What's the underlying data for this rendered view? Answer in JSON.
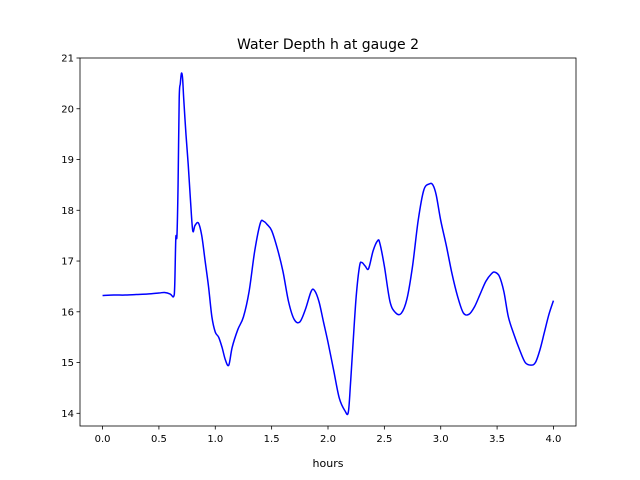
{
  "chart_data": {
    "type": "line",
    "title": "Water Depth h at gauge 2",
    "xlabel": "hours",
    "ylabel": "",
    "xlim": [
      -0.2,
      4.2
    ],
    "ylim": [
      13.75,
      21.0
    ],
    "grid": false,
    "x_ticks": [
      0.0,
      0.5,
      1.0,
      1.5,
      2.0,
      2.5,
      3.0,
      3.5,
      4.0
    ],
    "x_tick_labels": [
      "0.0",
      "0.5",
      "1.0",
      "1.5",
      "2.0",
      "2.5",
      "3.0",
      "3.5",
      "4.0"
    ],
    "y_ticks": [
      14,
      15,
      16,
      17,
      18,
      19,
      20,
      21
    ],
    "y_tick_labels": [
      "14",
      "15",
      "16",
      "17",
      "18",
      "19",
      "20",
      "21"
    ],
    "series": [
      {
        "color": "#0000ff",
        "x": [
          0.0,
          0.1,
          0.2,
          0.3,
          0.4,
          0.5,
          0.55,
          0.6,
          0.63,
          0.64,
          0.65,
          0.66,
          0.67,
          0.68,
          0.69,
          0.7,
          0.71,
          0.72,
          0.74,
          0.76,
          0.78,
          0.8,
          0.82,
          0.85,
          0.88,
          0.91,
          0.94,
          0.97,
          1.0,
          1.03,
          1.06,
          1.09,
          1.12,
          1.15,
          1.2,
          1.25,
          1.3,
          1.35,
          1.4,
          1.43,
          1.46,
          1.5,
          1.55,
          1.6,
          1.65,
          1.7,
          1.75,
          1.8,
          1.85,
          1.88,
          1.92,
          1.96,
          2.0,
          2.05,
          2.1,
          2.15,
          2.18,
          2.2,
          2.22,
          2.25,
          2.28,
          2.3,
          2.33,
          2.36,
          2.4,
          2.44,
          2.46,
          2.5,
          2.55,
          2.6,
          2.65,
          2.7,
          2.75,
          2.8,
          2.85,
          2.9,
          2.93,
          2.96,
          3.0,
          3.05,
          3.1,
          3.15,
          3.2,
          3.25,
          3.3,
          3.35,
          3.4,
          3.45,
          3.48,
          3.52,
          3.56,
          3.6,
          3.65,
          3.7,
          3.75,
          3.8,
          3.84,
          3.88,
          3.92,
          3.96,
          4.0
        ],
        "y": [
          16.32,
          16.33,
          16.33,
          16.34,
          16.35,
          16.37,
          16.38,
          16.35,
          16.3,
          16.5,
          17.45,
          17.5,
          18.5,
          20.2,
          20.5,
          20.7,
          20.6,
          20.2,
          19.5,
          18.9,
          18.2,
          17.6,
          17.7,
          17.75,
          17.5,
          17.0,
          16.5,
          15.9,
          15.6,
          15.5,
          15.3,
          15.05,
          14.95,
          15.3,
          15.65,
          15.9,
          16.4,
          17.2,
          17.75,
          17.78,
          17.72,
          17.6,
          17.25,
          16.8,
          16.2,
          15.85,
          15.8,
          16.05,
          16.4,
          16.42,
          16.2,
          15.8,
          15.4,
          14.85,
          14.3,
          14.05,
          14.02,
          14.6,
          15.3,
          16.3,
          16.9,
          16.97,
          16.9,
          16.85,
          17.2,
          17.4,
          17.35,
          16.9,
          16.2,
          15.98,
          15.97,
          16.25,
          16.9,
          17.8,
          18.4,
          18.52,
          18.5,
          18.3,
          17.8,
          17.3,
          16.75,
          16.3,
          15.98,
          15.95,
          16.1,
          16.35,
          16.6,
          16.75,
          16.78,
          16.7,
          16.4,
          15.9,
          15.55,
          15.25,
          15.0,
          14.95,
          15.0,
          15.25,
          15.6,
          15.95,
          16.22
        ]
      }
    ]
  }
}
